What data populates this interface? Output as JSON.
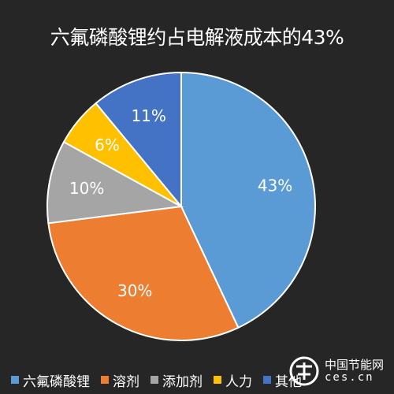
{
  "chart_data": {
    "type": "pie",
    "title": "六氟磷酸锂约占电解液成本的43%",
    "slices": [
      {
        "name": "六氟磷酸锂",
        "value": 43,
        "label": "43%",
        "color": "#5b9bd5"
      },
      {
        "name": "溶剂",
        "value": 30,
        "label": "30%",
        "color": "#ed7d31"
      },
      {
        "name": "添加剂",
        "value": 10,
        "label": "10%",
        "color": "#a5a5a5"
      },
      {
        "name": "人力",
        "value": 6,
        "label": "6%",
        "color": "#ffc000"
      },
      {
        "name": "其他",
        "value": 11,
        "label": "11%",
        "color": "#4472c4"
      }
    ],
    "legend_position": "bottom"
  },
  "watermark": {
    "text_cn": "中国节能网",
    "text_en": "ces.cn"
  }
}
